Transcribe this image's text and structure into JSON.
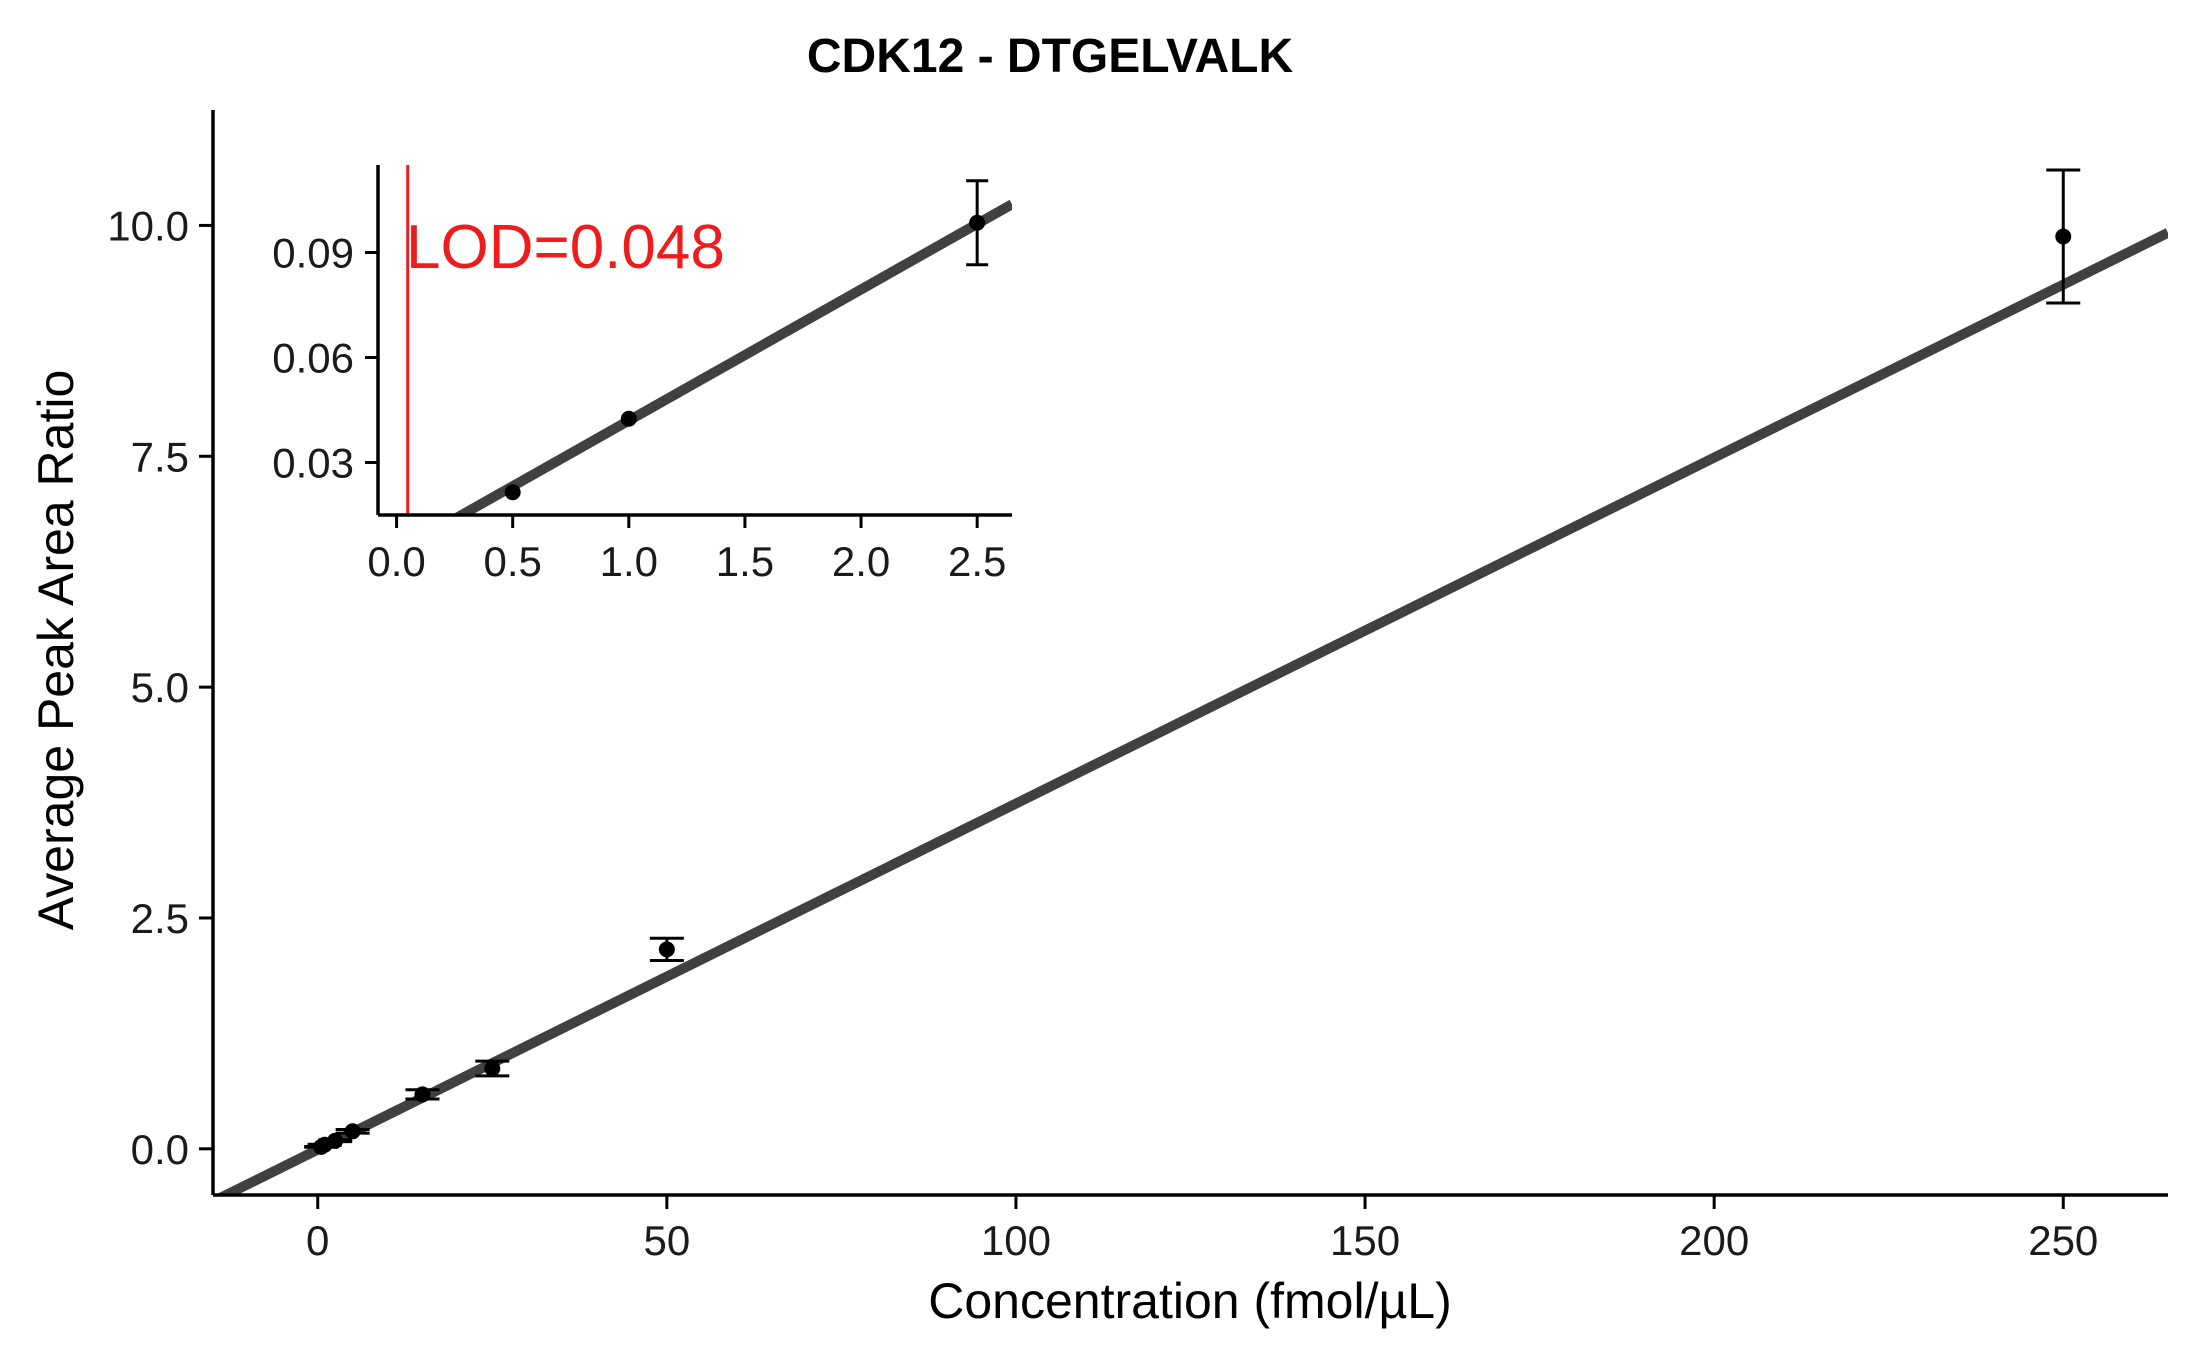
{
  "chart_data": [
    {
      "type": "scatter",
      "title": "CDK12 - DTGELVALK",
      "xlabel": "Concentration (fmol/µL)",
      "ylabel": "Average Peak Area Ratio",
      "xlim": [
        -15,
        265
      ],
      "ylim": [
        -0.5,
        11.25
      ],
      "xticks": [
        0,
        50,
        100,
        150,
        200,
        250
      ],
      "xtick_labels": [
        "0",
        "50",
        "100",
        "150",
        "200",
        "250"
      ],
      "yticks": [
        0.0,
        2.5,
        5.0,
        7.5,
        10.0
      ],
      "ytick_labels": [
        "0.0",
        "2.5",
        "5.0",
        "7.5",
        "10.0"
      ],
      "grid": false,
      "colors": {
        "points": "#000000",
        "fit_line": "#404040"
      },
      "fit_line": {
        "slope": 0.03747,
        "intercept": -0.0084
      },
      "points": [
        {
          "x": 0.5,
          "y": 0.021,
          "err": 0.004
        },
        {
          "x": 1,
          "y": 0.044,
          "err": 0.005
        },
        {
          "x": 2.5,
          "y": 0.088,
          "err": 0.01
        },
        {
          "x": 5,
          "y": 0.19,
          "err": 0.02
        },
        {
          "x": 15,
          "y": 0.59,
          "err": 0.05
        },
        {
          "x": 25,
          "y": 0.87,
          "err": 0.08
        },
        {
          "x": 50,
          "y": 2.16,
          "err": 0.12
        },
        {
          "x": 250,
          "y": 9.88,
          "err": 0.72
        }
      ]
    },
    {
      "type": "scatter",
      "title": "",
      "xlabel": "",
      "ylabel": "",
      "xlim": [
        -0.08,
        2.65
      ],
      "ylim": [
        0.015,
        0.115
      ],
      "xticks": [
        0.0,
        0.5,
        1.0,
        1.5,
        2.0,
        2.5
      ],
      "xtick_labels": [
        "0.0",
        "0.5",
        "1.0",
        "1.5",
        "2.0",
        "2.5"
      ],
      "yticks": [
        0.03,
        0.06,
        0.09
      ],
      "ytick_labels": [
        "0.03",
        "0.06",
        "0.09"
      ],
      "grid": false,
      "colors": {
        "points": "#000000",
        "fit_line": "#404040",
        "lod_line": "#ee1c1c"
      },
      "fit_line": {
        "slope": 0.03747,
        "intercept": 0.0045
      },
      "lod": {
        "x": 0.048,
        "label": "LOD=0.048"
      },
      "points": [
        {
          "x": 0.5,
          "y": 0.0215,
          "err": 0.0
        },
        {
          "x": 1,
          "y": 0.0425,
          "err": 0.0
        },
        {
          "x": 2.5,
          "y": 0.0985,
          "err": 0.012
        }
      ]
    }
  ]
}
